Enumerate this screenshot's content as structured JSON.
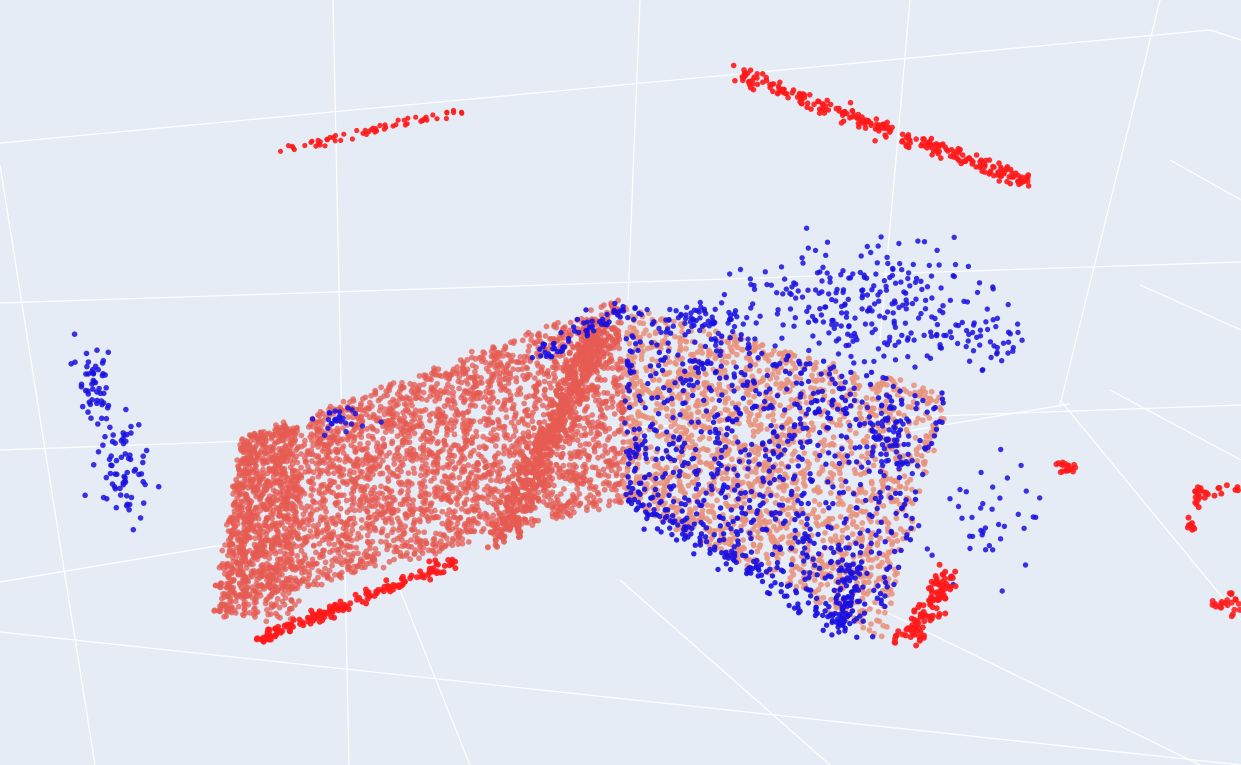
{
  "chart_data": {
    "type": "scatter",
    "projection": "3d",
    "title": "",
    "xlabel": "",
    "ylabel": "",
    "zlabel": "",
    "grid": true,
    "legend": "none",
    "colors": {
      "background": "#e5ecf6",
      "grid": "#ffffff",
      "red": "#ff1a1a",
      "salmon": "#e55b52",
      "peach": "#e9917a",
      "blue": "#1a10e0"
    },
    "note": "",
    "series": [
      {
        "name": "",
        "color": "#ff1a1a",
        "shape": "rod",
        "x": [
          -3.6,
          -2.0
        ],
        "y": [
          1.4,
          1.6
        ],
        "z": [
          1.7,
          1.9
        ],
        "approx_points": 60
      },
      {
        "name": "",
        "color": "#ff1a1a",
        "shape": "rod",
        "x": [
          1.0,
          3.6
        ],
        "y": [
          1.6,
          1.2
        ],
        "z": [
          1.9,
          1.3
        ],
        "approx_points": 260
      },
      {
        "name": "",
        "color": "#1a10e0",
        "shape": "cloud",
        "x": [
          -4.6,
          -4.2
        ],
        "y": [
          -0.2,
          0.6
        ],
        "z": [
          0.4,
          -0.6
        ],
        "approx_points": 120
      },
      {
        "name": "",
        "color": "#e55b52",
        "shape": "plane",
        "x": [
          -3.2,
          -0.2
        ],
        "y": [
          -0.9,
          0.0
        ],
        "z": [
          -0.9,
          0.2
        ],
        "approx_points": 3200
      },
      {
        "name": "",
        "color": "#ff1a1a",
        "shape": "rod",
        "x": [
          -3.0,
          -1.2
        ],
        "y": [
          -1.5,
          -1.0
        ],
        "z": [
          -1.2,
          -0.8
        ],
        "approx_points": 160
      },
      {
        "name": "",
        "color": "#e9917a",
        "shape": "plane",
        "x": [
          -0.2,
          2.6
        ],
        "y": [
          -1.0,
          0.3
        ],
        "z": [
          -0.8,
          0.5
        ],
        "approx_points": 1800
      },
      {
        "name": "",
        "color": "#1a10e0",
        "shape": "plane",
        "x": [
          -0.2,
          2.6
        ],
        "y": [
          -1.0,
          0.3
        ],
        "z": [
          -0.8,
          0.5
        ],
        "approx_points": 750
      },
      {
        "name": "",
        "color": "#1a10e0",
        "shape": "cloud",
        "x": [
          0.4,
          3.2
        ],
        "y": [
          0.3,
          1.0
        ],
        "z": [
          0.4,
          0.9
        ],
        "approx_points": 320
      },
      {
        "name": "",
        "color": "#1a10e0",
        "shape": "cloud",
        "x": [
          2.8,
          3.4
        ],
        "y": [
          -0.8,
          0.0
        ],
        "z": [
          -0.6,
          0.0
        ],
        "approx_points": 40
      },
      {
        "name": "",
        "color": "#ff1a1a",
        "shape": "cloud",
        "x": [
          2.2,
          2.8
        ],
        "y": [
          -1.2,
          -0.7
        ],
        "z": [
          -0.8,
          -0.4
        ],
        "approx_points": 100
      },
      {
        "name": "",
        "color": "#ff1a1a",
        "shape": "cloud",
        "x": [
          3.5,
          4.8
        ],
        "y": [
          -0.6,
          0.0
        ],
        "z": [
          -0.2,
          0.1
        ],
        "approx_points": 70
      }
    ]
  }
}
